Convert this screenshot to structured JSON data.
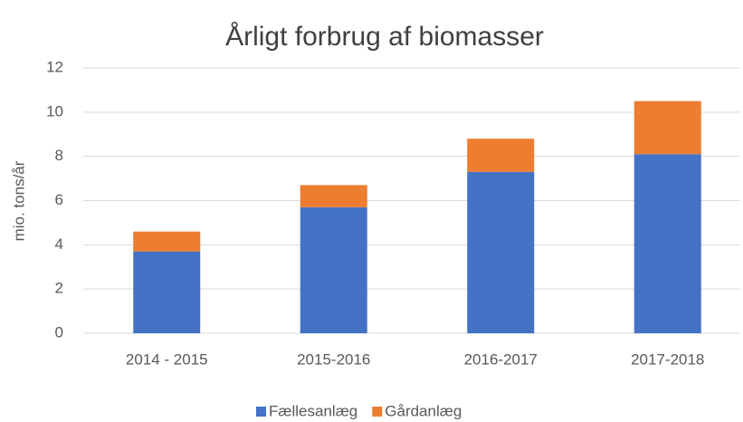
{
  "chart_data": {
    "type": "bar",
    "stacked": true,
    "title": "Årligt forbrug af biomasser",
    "y_label": "mio. tons/år",
    "categories": [
      "2014 - 2015",
      "2015-2016",
      "2016-2017",
      "2017-2018"
    ],
    "series": [
      {
        "name": "Fællesanlæg",
        "color": "#4472c4",
        "values": [
          3.7,
          5.7,
          7.3,
          8.1
        ]
      },
      {
        "name": "Gårdanlæg",
        "color": "#ed7d31",
        "values": [
          0.9,
          1.0,
          1.5,
          2.4
        ]
      }
    ],
    "ylim": [
      0,
      12
    ],
    "yticks": [
      0,
      2,
      4,
      6,
      8,
      10,
      12
    ],
    "grid": true,
    "legend": "bottom"
  }
}
